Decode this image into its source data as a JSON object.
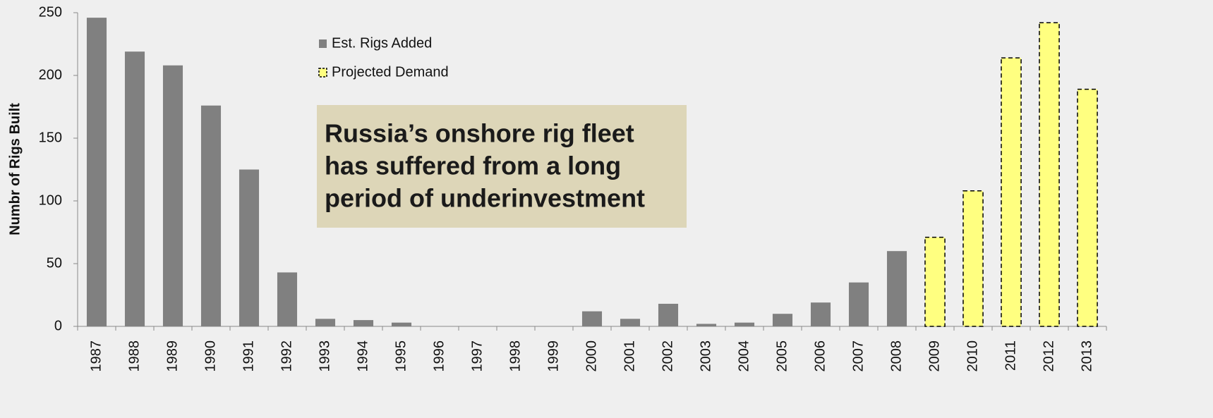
{
  "chart_data": {
    "type": "bar",
    "y_label": "Numbr of Rigs Built",
    "annotation": [
      "Russia’s onshore rig fleet",
      "has suffered from a long",
      "period of underinvestment"
    ],
    "categories": [
      "1987",
      "1988",
      "1989",
      "1990",
      "1991",
      "1992",
      "1993",
      "1994",
      "1995",
      "1996",
      "1997",
      "1998",
      "1999",
      "2000",
      "2001",
      "2002",
      "2003",
      "2004",
      "2005",
      "2006",
      "2007",
      "2008",
      "2009",
      "2010",
      "2011",
      "2012",
      "2013"
    ],
    "series": [
      {
        "name": "Est. Rigs Added",
        "color": "#808080",
        "values": [
          246,
          219,
          208,
          176,
          125,
          43,
          6,
          5,
          3,
          0,
          0,
          0,
          0,
          12,
          6,
          18,
          2,
          3,
          10,
          19,
          35,
          60,
          null,
          null,
          null,
          null,
          null
        ]
      },
      {
        "name": "Projected Demand",
        "color": "#ffff80",
        "values": [
          null,
          null,
          null,
          null,
          null,
          null,
          null,
          null,
          null,
          null,
          null,
          null,
          null,
          null,
          null,
          null,
          null,
          null,
          null,
          null,
          null,
          null,
          71,
          108,
          214,
          242,
          189
        ]
      }
    ],
    "ylim": [
      0,
      250
    ],
    "yticks": [
      0,
      50,
      100,
      150,
      200,
      250
    ]
  }
}
